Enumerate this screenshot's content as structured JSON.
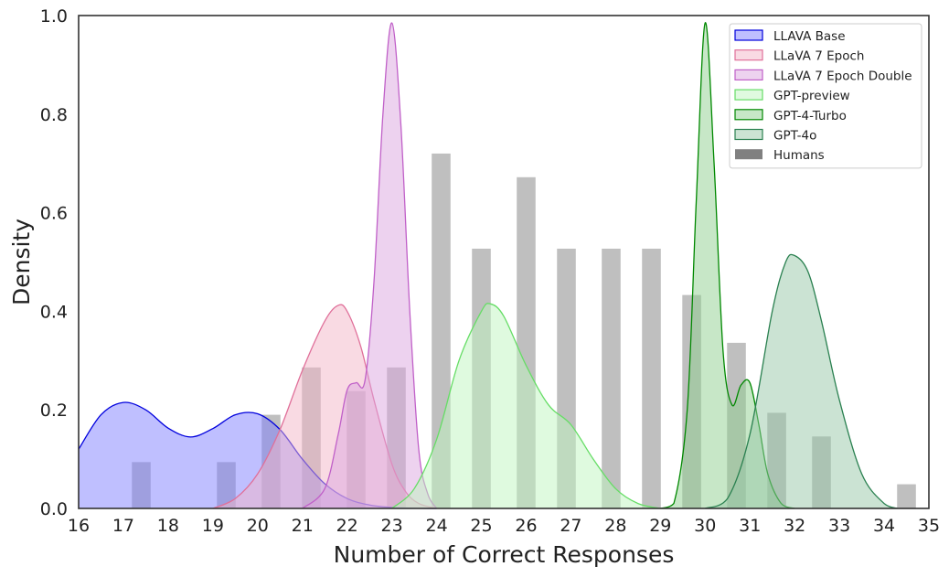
{
  "chart_data": {
    "type": "area",
    "xlabel": "Number of Correct Responses",
    "ylabel": "Density",
    "xlim": [
      16,
      35
    ],
    "ylim": [
      0,
      1.0
    ],
    "xticks": [
      "16",
      "17",
      "18",
      "19",
      "20",
      "21",
      "22",
      "23",
      "24",
      "25",
      "26",
      "27",
      "28",
      "29",
      "30",
      "31",
      "32",
      "33",
      "34",
      "35"
    ],
    "yticks": [
      "0.0",
      "0.2",
      "0.4",
      "0.6",
      "0.8",
      "1.0"
    ],
    "grid": false,
    "legend_position": "top-right",
    "histogram": {
      "name": "Humans",
      "color": "#808080",
      "bars": [
        {
          "x": 17.4,
          "density": 0.094
        },
        {
          "x": 19.3,
          "density": 0.094
        },
        {
          "x": 20.3,
          "density": 0.19
        },
        {
          "x": 21.2,
          "density": 0.286
        },
        {
          "x": 22.2,
          "density": 0.238
        },
        {
          "x": 23.1,
          "density": 0.286
        },
        {
          "x": 24.1,
          "density": 0.72
        },
        {
          "x": 25.0,
          "density": 0.527
        },
        {
          "x": 26.0,
          "density": 0.672
        },
        {
          "x": 26.9,
          "density": 0.527
        },
        {
          "x": 27.9,
          "density": 0.527
        },
        {
          "x": 28.8,
          "density": 0.527
        },
        {
          "x": 29.7,
          "density": 0.433
        },
        {
          "x": 30.7,
          "density": 0.336
        },
        {
          "x": 31.6,
          "density": 0.194
        },
        {
          "x": 32.6,
          "density": 0.146
        },
        {
          "x": 34.5,
          "density": 0.049
        }
      ]
    },
    "series": [
      {
        "name": "LLAVA Base",
        "fill": "#8080ff",
        "stroke": "#0000dd",
        "x": [
          16.0,
          16.5,
          17.0,
          17.5,
          18.0,
          18.5,
          19.0,
          19.5,
          20.0,
          20.5,
          21.0,
          21.5,
          22.0,
          22.5,
          23.0,
          23.5,
          24.0
        ],
        "y": [
          0.12,
          0.19,
          0.215,
          0.2,
          0.163,
          0.145,
          0.162,
          0.19,
          0.192,
          0.16,
          0.1,
          0.05,
          0.02,
          0.007,
          0.002,
          0.0005,
          0.0
        ]
      },
      {
        "name": "LLaVA 7 Epoch",
        "fill": "#f4b6c8",
        "stroke": "#e0709a",
        "x": [
          19.0,
          19.5,
          20.0,
          20.5,
          21.0,
          21.5,
          21.8,
          22.0,
          22.3,
          22.6,
          23.0,
          23.3,
          23.6,
          24.0
        ],
        "y": [
          0.0,
          0.02,
          0.07,
          0.16,
          0.28,
          0.38,
          0.412,
          0.4,
          0.33,
          0.22,
          0.09,
          0.035,
          0.01,
          0.0
        ]
      },
      {
        "name": "LLaVA 7 Epoch Double",
        "fill": "#dba6e0",
        "stroke": "#c060c8",
        "x": [
          21.0,
          21.5,
          21.8,
          22.0,
          22.2,
          22.4,
          22.6,
          22.8,
          23.0,
          23.2,
          23.4,
          23.6,
          23.8,
          24.0
        ],
        "y": [
          0.0,
          0.04,
          0.15,
          0.24,
          0.255,
          0.26,
          0.46,
          0.8,
          0.985,
          0.78,
          0.4,
          0.12,
          0.03,
          0.0
        ]
      },
      {
        "name": "GPT-preview",
        "fill": "#bff5bf",
        "stroke": "#66dd66",
        "x": [
          23.0,
          23.5,
          24.0,
          24.5,
          25.0,
          25.2,
          25.5,
          26.0,
          26.5,
          27.0,
          27.5,
          28.0,
          28.5,
          29.0
        ],
        "y": [
          0.0,
          0.04,
          0.14,
          0.3,
          0.4,
          0.415,
          0.39,
          0.29,
          0.21,
          0.17,
          0.1,
          0.04,
          0.01,
          0.0
        ]
      },
      {
        "name": "GPT-4-Turbo",
        "fill": "#8fcf8f",
        "stroke": "#008800",
        "x": [
          29.0,
          29.3,
          29.6,
          29.8,
          30.0,
          30.2,
          30.4,
          30.6,
          30.8,
          31.0,
          31.2,
          31.4,
          31.7,
          32.0
        ],
        "y": [
          0.0,
          0.01,
          0.2,
          0.62,
          0.985,
          0.7,
          0.32,
          0.21,
          0.25,
          0.255,
          0.17,
          0.07,
          0.01,
          0.0
        ]
      },
      {
        "name": "GPT-4o",
        "fill": "#98c8a8",
        "stroke": "#2a8050",
        "x": [
          30.0,
          30.5,
          31.0,
          31.5,
          31.8,
          32.0,
          32.3,
          32.6,
          33.0,
          33.5,
          34.0,
          34.3
        ],
        "y": [
          0.0,
          0.02,
          0.15,
          0.4,
          0.5,
          0.513,
          0.48,
          0.38,
          0.22,
          0.07,
          0.01,
          0.0
        ]
      }
    ]
  }
}
